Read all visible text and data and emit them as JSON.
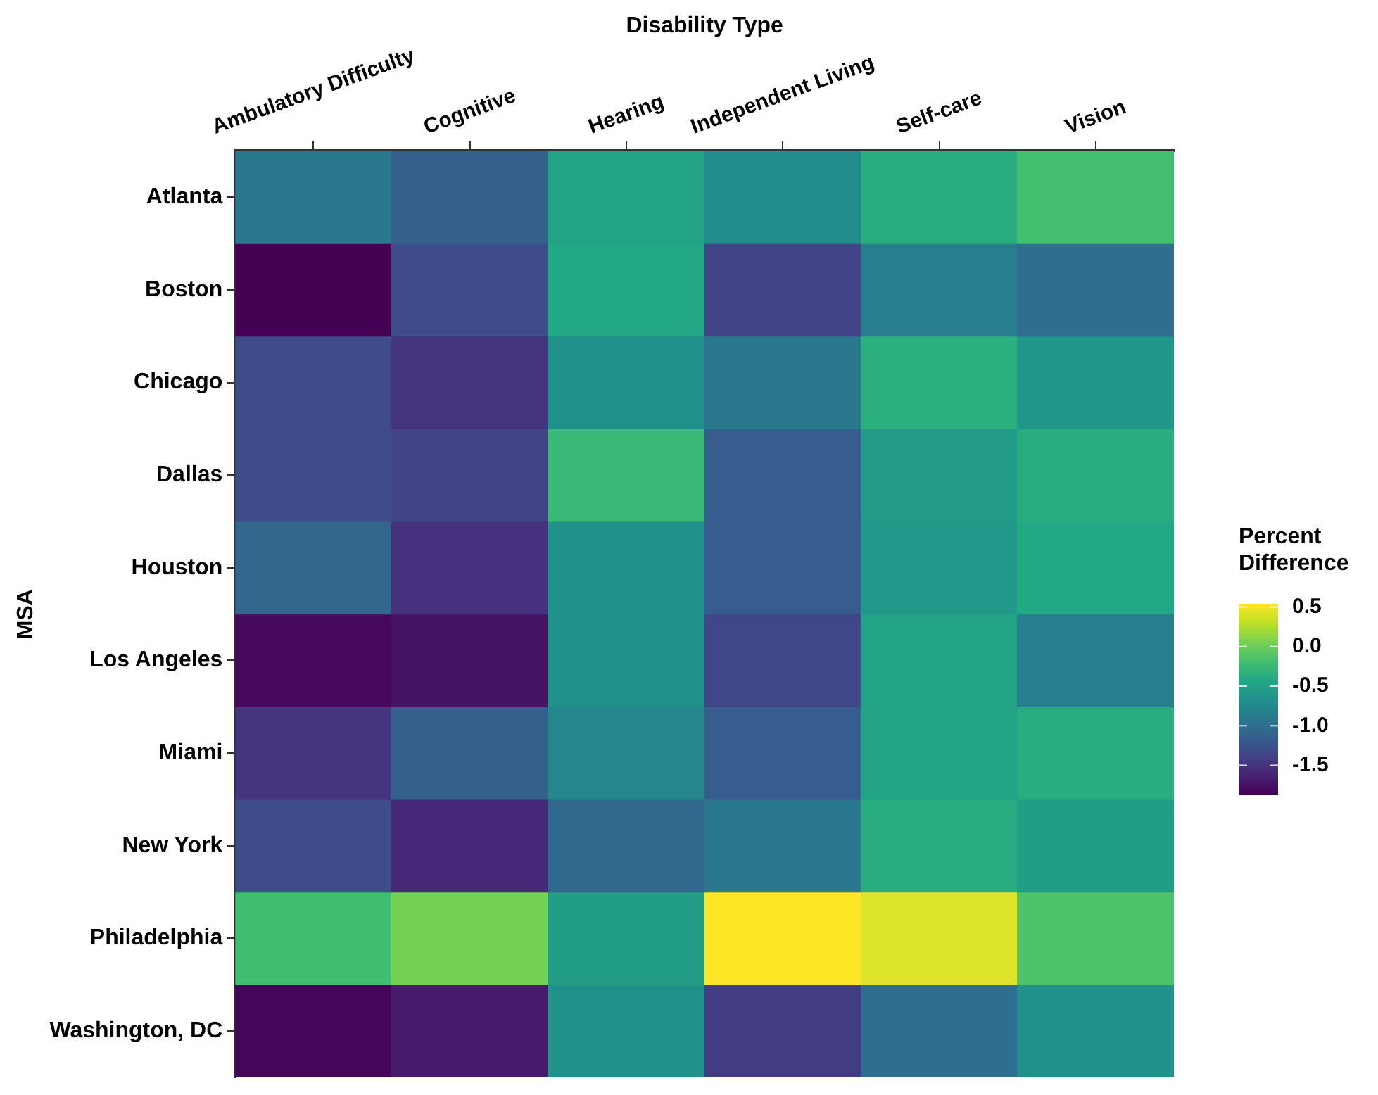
{
  "chart_data": {
    "type": "heatmap",
    "xlabel": "Disability Type",
    "ylabel": "MSA",
    "clabel": "Percent Difference",
    "categories": [
      "Ambulatory Difficulty",
      "Cognitive",
      "Hearing",
      "Independent Living",
      "Self-care",
      "Vision"
    ],
    "y_categories": [
      "Atlanta",
      "Boston",
      "Chicago",
      "Dallas",
      "Houston",
      "Los Angeles",
      "Miami",
      "New York",
      "Philadelphia",
      "Washington, DC"
    ],
    "cells": [
      [
        -0.9,
        -1.14,
        -0.47,
        -0.71,
        -0.37,
        -0.18
      ],
      [
        -1.85,
        -1.31,
        -0.42,
        -1.38,
        -0.85,
        -1.0
      ],
      [
        -1.31,
        -1.5,
        -0.66,
        -0.9,
        -0.35,
        -0.6
      ],
      [
        -1.31,
        -1.38,
        -0.25,
        -1.16,
        -0.54,
        -0.37
      ],
      [
        -1.07,
        -1.52,
        -0.66,
        -1.16,
        -0.59,
        -0.42
      ],
      [
        -1.81,
        -1.74,
        -0.66,
        -1.36,
        -0.47,
        -0.83
      ],
      [
        -1.5,
        -1.14,
        -0.76,
        -1.16,
        -0.47,
        -0.37
      ],
      [
        -1.31,
        -1.6,
        -1.04,
        -0.9,
        -0.37,
        -0.52
      ],
      [
        -0.2,
        0.04,
        -0.52,
        0.54,
        0.42,
        -0.13
      ],
      [
        -1.83,
        -1.69,
        -0.66,
        -1.43,
        -1.0,
        -0.66
      ]
    ],
    "clim": [
      -1.86,
      0.54
    ],
    "cticks": [
      {
        "value": 0.5,
        "label": "0.5"
      },
      {
        "value": 0,
        "label": "0.0"
      },
      {
        "value": -0.5,
        "label": "-0.5"
      },
      {
        "value": -1,
        "label": "-1.0"
      },
      {
        "value": -1.5,
        "label": "-1.5"
      }
    ]
  }
}
